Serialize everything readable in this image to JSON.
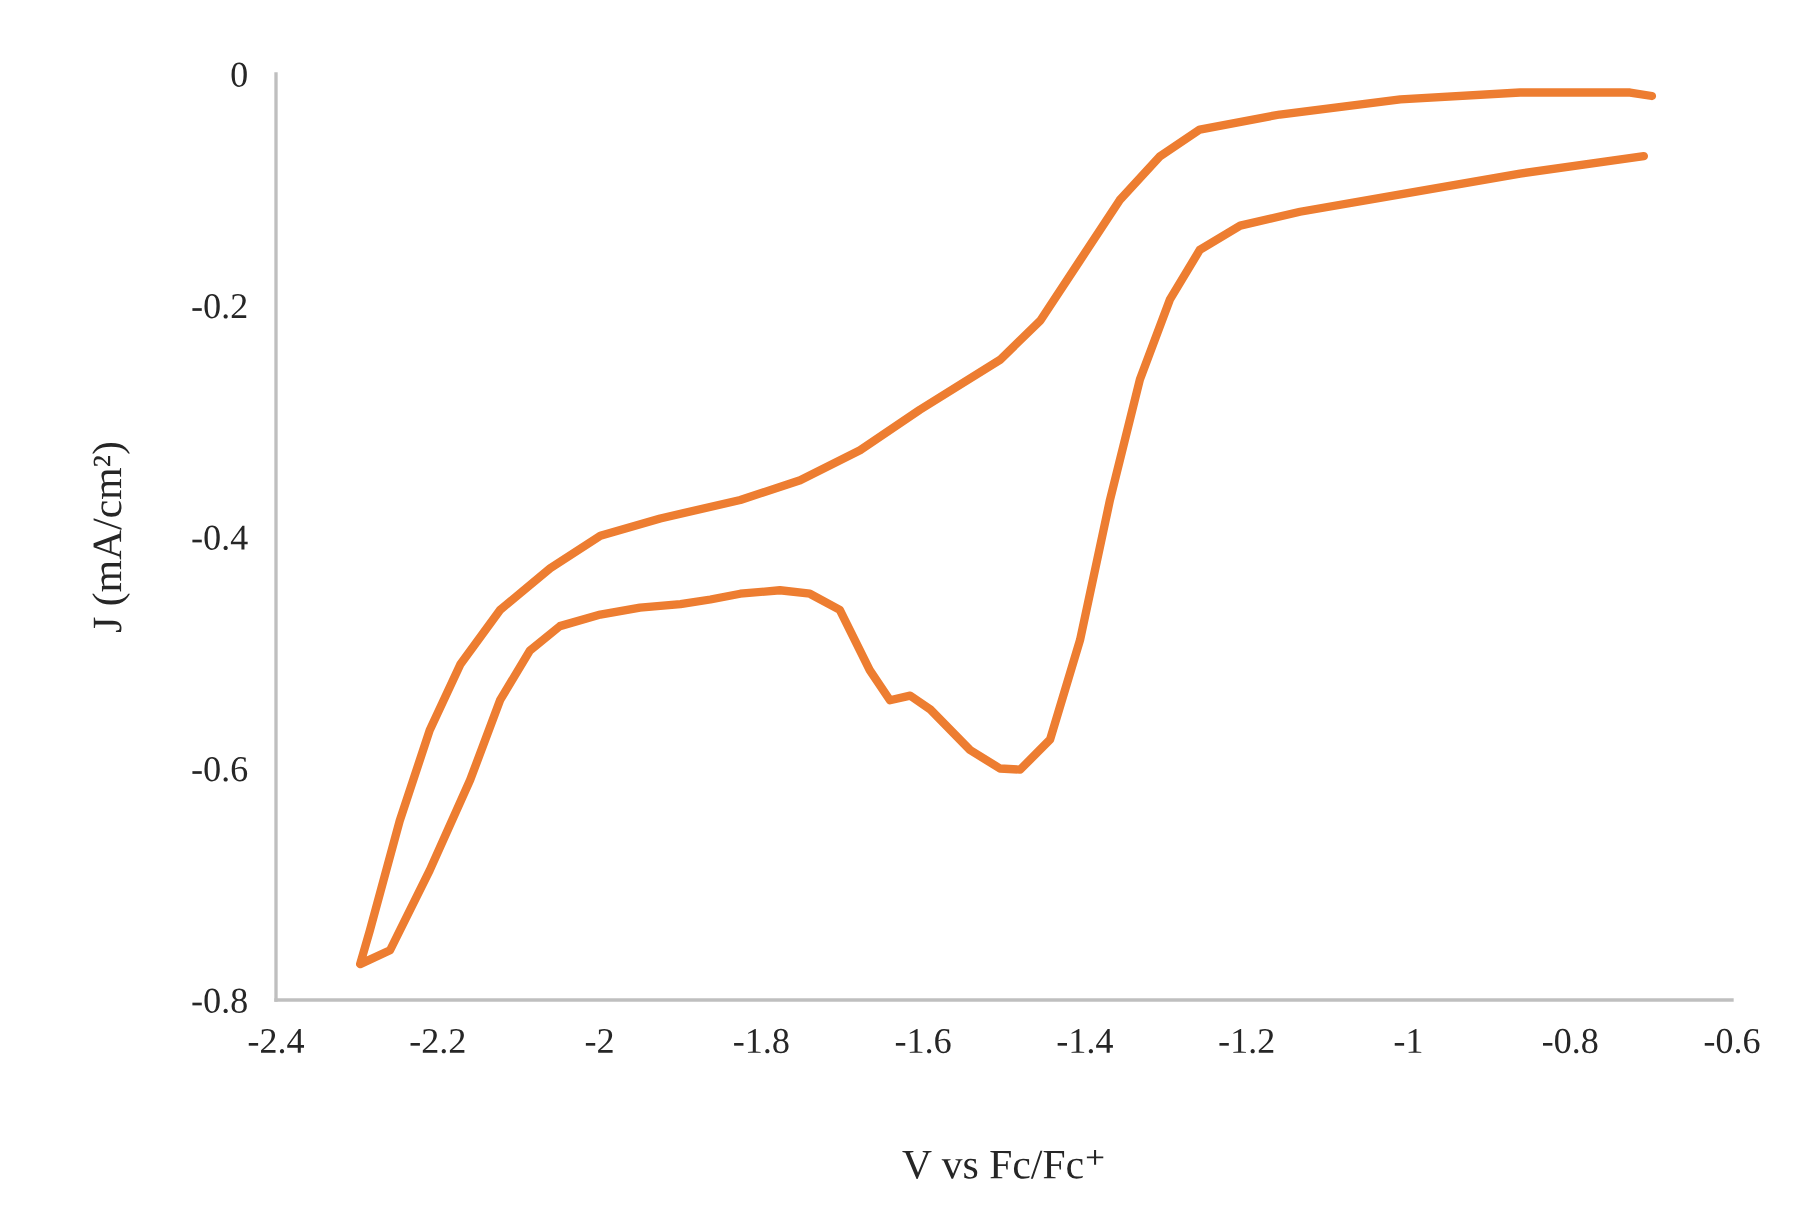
{
  "chart_data": {
    "type": "line",
    "xlabel": "V vs Fc/Fc⁺",
    "ylabel": "J (mA/cm²)",
    "series": [
      {
        "color": "#ed7d31",
        "x": [
          -0.709,
          -0.862,
          -1.01,
          -1.134,
          -1.208,
          -1.258,
          -1.295,
          -1.332,
          -1.369,
          -1.406,
          -1.443,
          -1.48,
          -1.505,
          -1.542,
          -1.591,
          -1.616,
          -1.641,
          -1.666,
          -1.703,
          -1.74,
          -1.777,
          -1.826,
          -1.863,
          -1.9,
          -1.95,
          -1.999,
          -2.049,
          -2.086,
          -2.123,
          -2.16,
          -2.21,
          -2.259,
          -2.296,
          -2.284,
          -2.247,
          -2.21,
          -2.172,
          -2.123,
          -2.061,
          -1.999,
          -1.925,
          -1.826,
          -1.752,
          -1.678,
          -1.604,
          -1.505,
          -1.455,
          -1.406,
          -1.357,
          -1.307,
          -1.258,
          -1.159,
          -1.01,
          -0.862,
          -0.726,
          -0.699
        ],
        "values": [
          -0.071,
          -0.086,
          -0.104,
          -0.119,
          -0.131,
          -0.152,
          -0.195,
          -0.264,
          -0.368,
          -0.489,
          -0.575,
          -0.601,
          -0.6,
          -0.584,
          -0.549,
          -0.537,
          -0.541,
          -0.515,
          -0.463,
          -0.449,
          -0.446,
          -0.449,
          -0.454,
          -0.458,
          -0.461,
          -0.467,
          -0.477,
          -0.498,
          -0.541,
          -0.61,
          -0.688,
          -0.757,
          -0.769,
          -0.74,
          -0.645,
          -0.567,
          -0.51,
          -0.463,
          -0.427,
          -0.399,
          -0.384,
          -0.368,
          -0.351,
          -0.325,
          -0.29,
          -0.247,
          -0.213,
          -0.161,
          -0.109,
          -0.071,
          -0.048,
          -0.035,
          -0.022,
          -0.016,
          -0.016,
          -0.019
        ]
      }
    ],
    "xlim": [
      -2.4,
      -0.6
    ],
    "xticks": [
      {
        "value": -2.4,
        "label": "-2.4"
      },
      {
        "value": -2.2,
        "label": "-2.2"
      },
      {
        "value": -2.0,
        "label": "-2"
      },
      {
        "value": -1.8,
        "label": "-1.8"
      },
      {
        "value": -1.6,
        "label": "-1.6"
      },
      {
        "value": -1.4,
        "label": "-1.4"
      },
      {
        "value": -1.2,
        "label": "-1.2"
      },
      {
        "value": -1.0,
        "label": "-1"
      },
      {
        "value": -0.8,
        "label": "-0.8"
      },
      {
        "value": -0.6,
        "label": "-0.6"
      }
    ],
    "ylim": [
      -0.8,
      0
    ],
    "yticks": [
      {
        "value": -0.8,
        "label": "-0.8"
      },
      {
        "value": -0.6,
        "label": "-0.6"
      },
      {
        "value": -0.4,
        "label": "-0.4"
      },
      {
        "value": -0.2,
        "label": "-0.2"
      },
      {
        "value": 0,
        "label": "0"
      }
    ],
    "grid": false,
    "legend": false,
    "marker": "none",
    "line_style": "solid"
  }
}
